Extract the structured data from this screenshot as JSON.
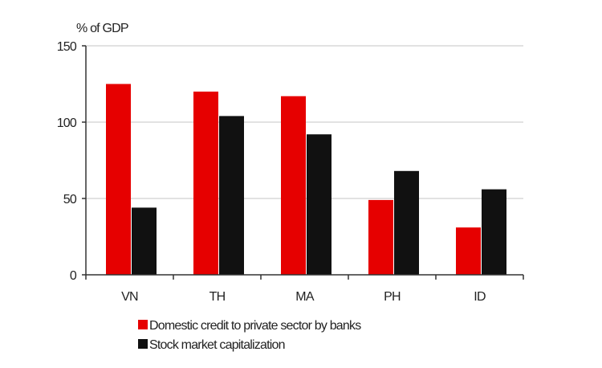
{
  "chart_data": {
    "type": "bar",
    "title": "",
    "ylabel": "% of GDP",
    "xlabel": "",
    "categories": [
      "VN",
      "TH",
      "MA",
      "PH",
      "ID"
    ],
    "ylim": [
      0,
      150
    ],
    "yticks": [
      0,
      50,
      100,
      150
    ],
    "grid": true,
    "legend_placement": "bottom",
    "series": [
      {
        "name": "Domestic credit to private sector by banks",
        "color": "#e60000",
        "values": [
          125,
          120,
          117,
          49,
          31
        ]
      },
      {
        "name": "Stock market capitalization",
        "color": "#111111",
        "values": [
          44,
          104,
          92,
          68,
          56
        ]
      }
    ]
  }
}
